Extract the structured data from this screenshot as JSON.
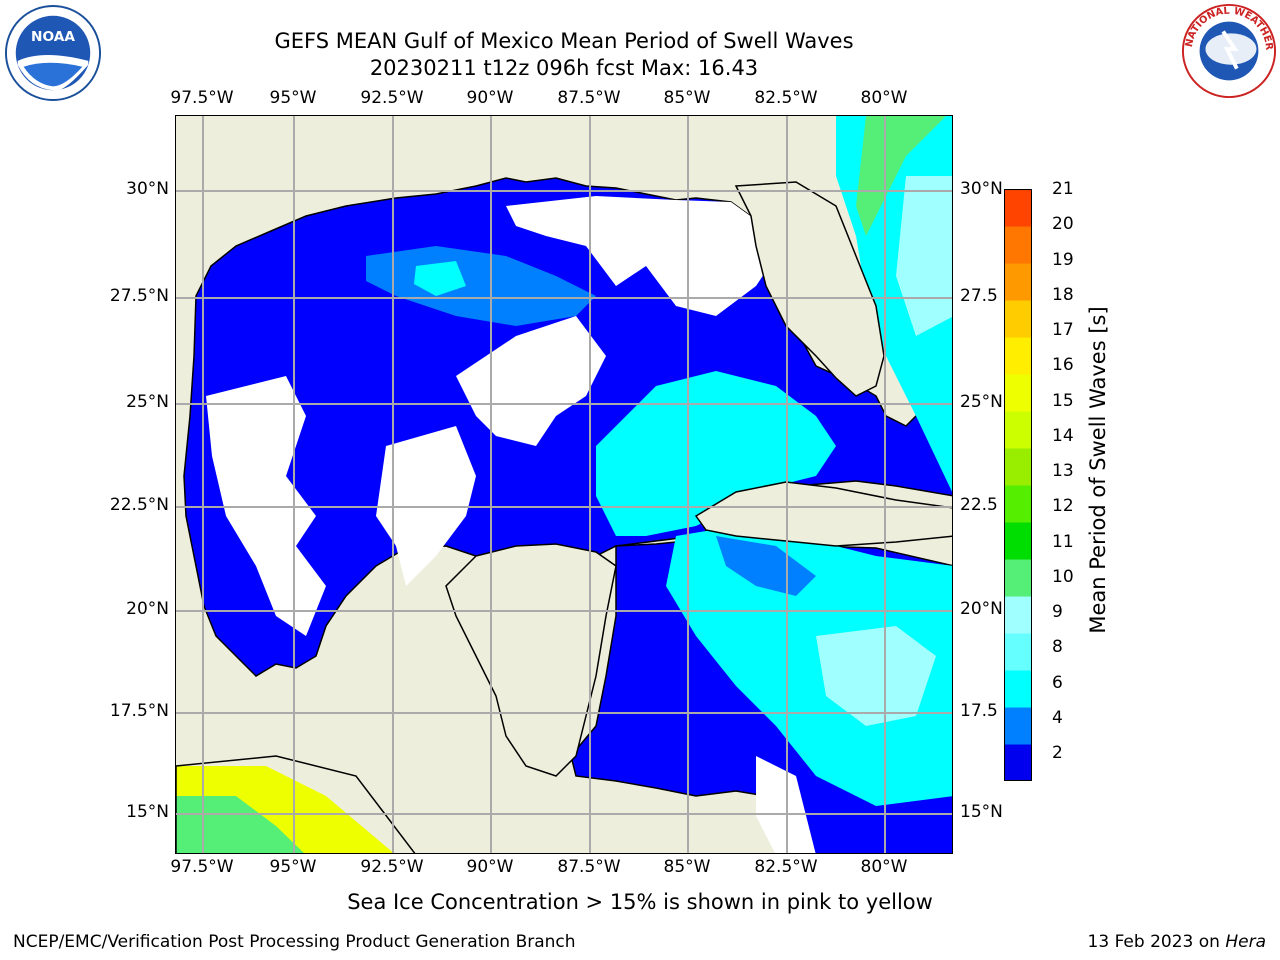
{
  "title": {
    "line1": "GEFS MEAN Gulf of Mexico Mean Period of Swell Waves",
    "line2": "20230211 t12z 096h fcst   Max: 16.43"
  },
  "logos": {
    "left": {
      "text": "NOAA",
      "icon": "noaa-logo-icon"
    },
    "right": {
      "text": "NATIONAL WEATHER SERVICE",
      "icon": "nws-logo-icon"
    }
  },
  "map": {
    "lon_labels_top": [
      "97.5°W",
      "95°W",
      "92.5°W",
      "90°W",
      "87.5°W",
      "85°W",
      "82.5°W",
      "80°W"
    ],
    "lon_labels_bottom": [
      "97.5°W",
      "95°W",
      "92.5°W",
      "90°W",
      "87.5°W",
      "85°W",
      "82.5°W",
      "80°W"
    ],
    "lat_labels_left": [
      "30°N",
      "27.5°N",
      "25°N",
      "22.5°N",
      "20°N",
      "17.5°N",
      "15°N"
    ],
    "lat_labels_right": [
      "30°N",
      "27.5",
      "25°N",
      "22.5",
      "20°N",
      "17.5",
      "15°N"
    ],
    "colors": {
      "land": "#eeeedc",
      "ocean_low": "#0000ff",
      "ocean_mid": "#0080ff",
      "grid": "#aaaaaa"
    }
  },
  "colorbar": {
    "label": "Mean Period of Swell Waves [s]",
    "ticks": [
      "2",
      "4",
      "6",
      "8",
      "9",
      "10",
      "11",
      "12",
      "13",
      "14",
      "15",
      "16",
      "17",
      "18",
      "19",
      "20",
      "21"
    ],
    "colors": [
      "#0000ee",
      "#0080ff",
      "#00ffff",
      "#66ffff",
      "#a0ffff",
      "#55ee77",
      "#00dd00",
      "#55ee00",
      "#99ee00",
      "#ccff00",
      "#eeff00",
      "#ffee00",
      "#ffcc00",
      "#ff9900",
      "#ff7700",
      "#ff4400",
      "#ff0000"
    ]
  },
  "note": "Sea Ice Concentration > 15% is shown in pink to yellow",
  "footer": {
    "left": "NCEP/EMC/Verification Post Processing Product Generation Branch",
    "right_prefix": "13 Feb 2023 on ",
    "right_italic": "Hera"
  }
}
